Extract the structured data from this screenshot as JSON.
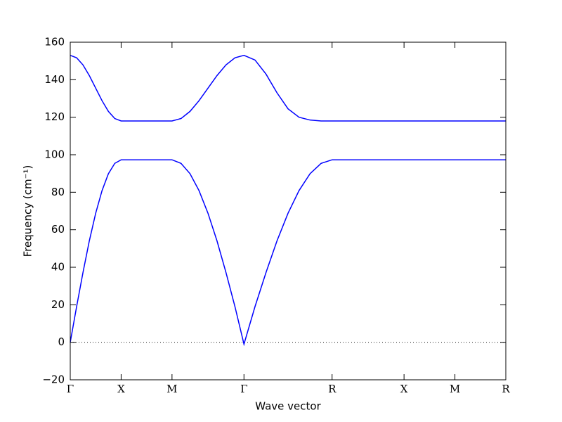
{
  "chart_data": {
    "type": "line",
    "x_label": "Wave vector",
    "y_label": "Frequency (cm⁻¹)",
    "x": [
      0,
      0.0625,
      0.125,
      0.1875,
      0.25,
      0.3125,
      0.375,
      0.4375,
      0.5,
      0.75,
      1.0,
      1.0884,
      1.1768,
      1.2652,
      1.3536,
      1.4419,
      1.5303,
      1.6187,
      1.7071,
      1.8154,
      1.9236,
      2.0319,
      2.1401,
      2.2484,
      2.3566,
      2.4649,
      2.5731,
      3.2802,
      3.7802,
      4.2802
    ],
    "series": [
      {
        "color": "#0000ff",
        "values": [
          0,
          19,
          37.2,
          54.1,
          68.8,
          80.9,
          89.9,
          95.4,
          97.3,
          97.3,
          97.3,
          95.4,
          89.9,
          80.9,
          68.8,
          54.1,
          37.2,
          19,
          -1,
          19,
          37.2,
          54.1,
          68.8,
          80.9,
          89.9,
          95.4,
          97.3,
          97.3,
          97.3,
          97.3
        ]
      },
      {
        "color": "#0000ff",
        "values": [
          153,
          151.7,
          147.9,
          142.2,
          135.5,
          128.8,
          123.1,
          119.3,
          118,
          118,
          118,
          119.3,
          123.1,
          128.8,
          135.5,
          142.2,
          147.9,
          151.7,
          153,
          150.5,
          143,
          133,
          124.5,
          120,
          118.5,
          118,
          118,
          118,
          118,
          118
        ]
      }
    ],
    "xlim": [
      0,
      4.2802
    ],
    "xticks": [
      {
        "value": 0,
        "label": "Γ"
      },
      {
        "value": 0.5,
        "label": "X"
      },
      {
        "value": 1.0,
        "label": "M"
      },
      {
        "value": 1.7071,
        "label": "Γ"
      },
      {
        "value": 2.5731,
        "label": "R"
      },
      {
        "value": 3.2802,
        "label": "X"
      },
      {
        "value": 3.7802,
        "label": "M"
      },
      {
        "value": 4.2802,
        "label": "R"
      }
    ],
    "ylim": [
      -20,
      160
    ],
    "yticks": [
      {
        "value": -20,
        "label": "−20"
      },
      0,
      20,
      40,
      60,
      80,
      100,
      120,
      140,
      160
    ],
    "zero_line": true
  }
}
